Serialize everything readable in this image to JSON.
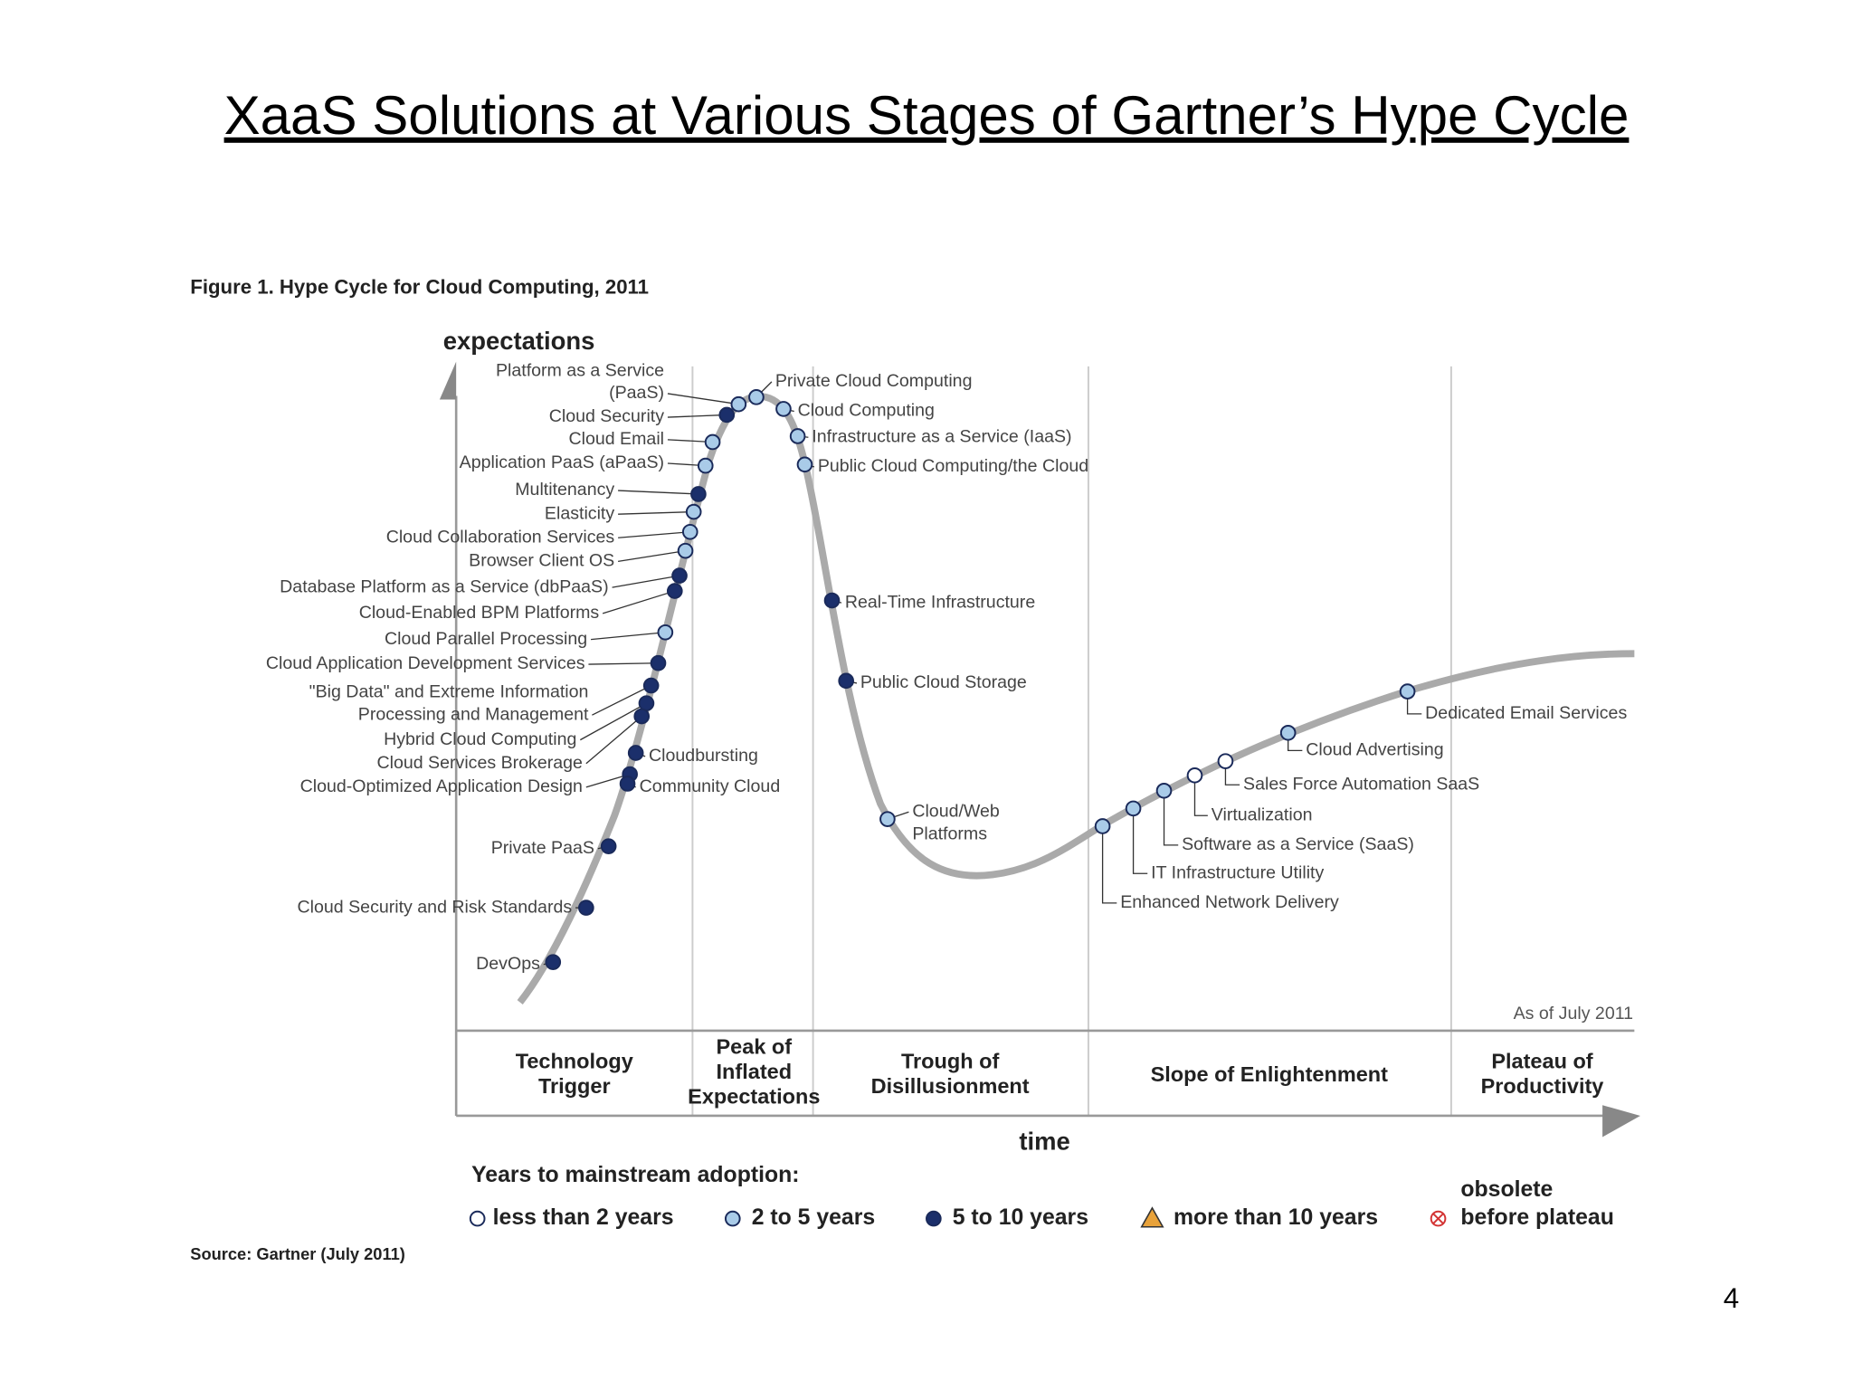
{
  "header": {
    "title": "XaaS Solutions at Various Stages of Gartner’s Hype Cycle"
  },
  "figure": {
    "caption": "Figure 1. Hype Cycle for Cloud Computing, 2011",
    "y_axis_label": "expectations",
    "x_axis_label": "time",
    "as_of": "As of July 2011",
    "source": "Source: Gartner (July 2011)",
    "phases": [
      {
        "lines": [
          "Technology",
          "Trigger"
        ]
      },
      {
        "lines": [
          "Peak of",
          "Inflated",
          "Expectations"
        ]
      },
      {
        "lines": [
          "Trough of",
          "Disillusionment"
        ]
      },
      {
        "lines": [
          "Slope of Enlightenment"
        ]
      },
      {
        "lines": [
          "Plateau of",
          "Productivity"
        ]
      }
    ],
    "technologies": [
      {
        "label": [
          "Platform as a Service",
          "(PaaS)"
        ],
        "adoption": "2 to 5 years"
      },
      {
        "label": [
          "Cloud Security"
        ],
        "adoption": "5 to 10 years"
      },
      {
        "label": [
          "Cloud Email"
        ],
        "adoption": "2 to 5 years"
      },
      {
        "label": [
          "Application PaaS (aPaaS)"
        ],
        "adoption": "2 to 5 years"
      },
      {
        "label": [
          "Multitenancy"
        ],
        "adoption": "5 to 10 years"
      },
      {
        "label": [
          "Elasticity"
        ],
        "adoption": "2 to 5 years"
      },
      {
        "label": [
          "Cloud Collaboration Services"
        ],
        "adoption": "2 to 5 years"
      },
      {
        "label": [
          "Browser Client OS"
        ],
        "adoption": "2 to 5 years"
      },
      {
        "label": [
          "Database Platform as a Service (dbPaaS)"
        ],
        "adoption": "5 to 10 years"
      },
      {
        "label": [
          "Cloud-Enabled BPM Platforms"
        ],
        "adoption": "5 to 10 years"
      },
      {
        "label": [
          "Cloud Parallel Processing"
        ],
        "adoption": "2 to 5 years"
      },
      {
        "label": [
          "Cloud Application Development Services"
        ],
        "adoption": "5 to 10 years"
      },
      {
        "label": [
          "\"Big Data\" and Extreme Information",
          "Processing and Management"
        ],
        "adoption": "5 to 10 years"
      },
      {
        "label": [
          "Hybrid Cloud Computing"
        ],
        "adoption": "5 to 10 years"
      },
      {
        "label": [
          "Cloud Services Brokerage"
        ],
        "adoption": "5 to 10 years"
      },
      {
        "label": [
          "Cloud-Optimized Application Design"
        ],
        "adoption": "5 to 10 years"
      },
      {
        "label": [
          "Cloudbursting"
        ],
        "adoption": "5 to 10 years"
      },
      {
        "label": [
          "Community Cloud"
        ],
        "adoption": "5 to 10 years"
      },
      {
        "label": [
          "Private PaaS"
        ],
        "adoption": "5 to 10 years"
      },
      {
        "label": [
          "Cloud Security and Risk Standards"
        ],
        "adoption": "5 to 10 years"
      },
      {
        "label": [
          "DevOps"
        ],
        "adoption": "5 to 10 years"
      },
      {
        "label": [
          "Private Cloud Computing"
        ],
        "adoption": "2 to 5 years"
      },
      {
        "label": [
          "Cloud Computing"
        ],
        "adoption": "2 to 5 years"
      },
      {
        "label": [
          "Infrastructure as a Service (IaaS)"
        ],
        "adoption": "2 to 5 years"
      },
      {
        "label": [
          "Public Cloud Computing/the Cloud"
        ],
        "adoption": "2 to 5 years"
      },
      {
        "label": [
          "Real-Time Infrastructure"
        ],
        "adoption": "5 to 10 years"
      },
      {
        "label": [
          "Public Cloud Storage"
        ],
        "adoption": "5 to 10 years"
      },
      {
        "label": [
          "Cloud/Web",
          "Platforms"
        ],
        "adoption": "2 to 5 years"
      },
      {
        "label": [
          "Enhanced Network Delivery"
        ],
        "adoption": "2 to 5 years"
      },
      {
        "label": [
          "IT Infrastructure Utility"
        ],
        "adoption": "2 to 5 years"
      },
      {
        "label": [
          "Software as a Service (SaaS)"
        ],
        "adoption": "2 to 5 years"
      },
      {
        "label": [
          "Virtualization"
        ],
        "adoption": "less than 2 years"
      },
      {
        "label": [
          "Sales Force Automation SaaS"
        ],
        "adoption": "less than 2 years"
      },
      {
        "label": [
          "Cloud Advertising"
        ],
        "adoption": "2 to 5 years"
      },
      {
        "label": [
          "Dedicated Email Services"
        ],
        "adoption": "2 to 5 years"
      }
    ],
    "legend": {
      "title": "Years to mainstream adoption:",
      "items": [
        {
          "label": [
            "less than 2 years"
          ],
          "marker": "circle",
          "color": "#ffffff"
        },
        {
          "label": [
            "2 to 5 years"
          ],
          "marker": "circle",
          "color": "#a9cbe8"
        },
        {
          "label": [
            "5 to 10 years"
          ],
          "marker": "circle",
          "color": "#1b2f6b"
        },
        {
          "label": [
            "more than 10 years"
          ],
          "marker": "triangle",
          "color": "#e8a23a"
        },
        {
          "label": [
            "obsolete",
            "before plateau"
          ],
          "marker": "crossed-circle",
          "color": "#d33333"
        }
      ]
    }
  },
  "page_number": "4"
}
